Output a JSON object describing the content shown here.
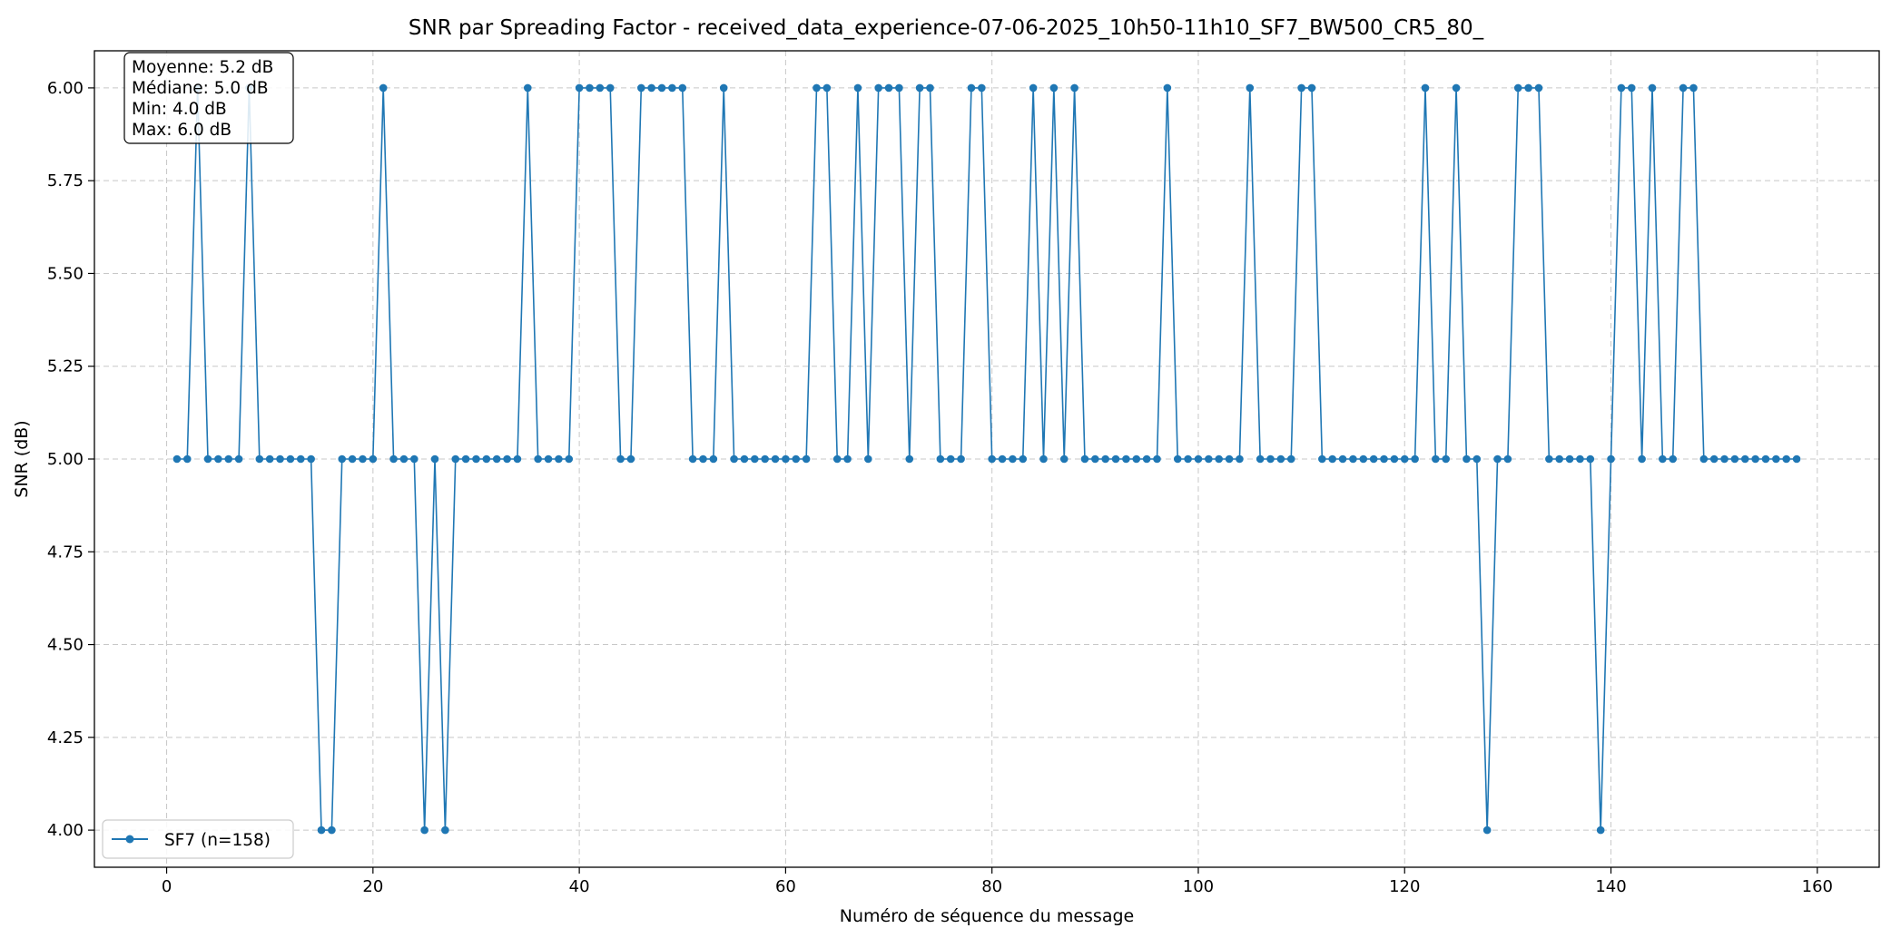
{
  "chart_data": {
    "type": "line",
    "title": "SNR par Spreading Factor - received_data_experience-07-06-2025_10h50-11h10_SF7_BW500_CR5_80_",
    "xlabel": "Numéro de séquence du message",
    "ylabel": "SNR (dB)",
    "xlim": [
      -7,
      166
    ],
    "ylim": [
      3.9,
      6.1
    ],
    "xticks": [
      0,
      20,
      40,
      60,
      80,
      100,
      120,
      140,
      160
    ],
    "xtick_labels": [
      "0",
      "20",
      "40",
      "60",
      "80",
      "100",
      "120",
      "140",
      "160"
    ],
    "yticks": [
      4.0,
      4.25,
      4.5,
      4.75,
      5.0,
      5.25,
      5.5,
      5.75,
      6.0
    ],
    "ytick_labels": [
      "4.00",
      "4.25",
      "4.50",
      "4.75",
      "5.00",
      "5.25",
      "5.50",
      "5.75",
      "6.00"
    ],
    "grid": true,
    "legend_position": "bottom-left",
    "stats_position": "top-left",
    "stats_lines": [
      "Moyenne: 5.2 dB",
      "Médiane: 5.0 dB",
      "Min: 4.0 dB",
      "Max: 6.0 dB"
    ],
    "series": [
      {
        "name": "SF7 (n=158)",
        "color": "#1f77b4",
        "x_start": 1,
        "values": [
          5,
          5,
          6,
          5,
          5,
          5,
          5,
          6,
          5,
          5,
          5,
          5,
          5,
          5,
          4,
          4,
          5,
          5,
          5,
          5,
          6,
          5,
          5,
          5,
          4,
          5,
          4,
          5,
          5,
          5,
          5,
          5,
          5,
          5,
          6,
          5,
          5,
          5,
          5,
          6,
          6,
          6,
          6,
          5,
          5,
          6,
          6,
          6,
          6,
          6,
          5,
          5,
          5,
          6,
          5,
          5,
          5,
          5,
          5,
          5,
          5,
          5,
          6,
          6,
          5,
          5,
          6,
          5,
          6,
          6,
          6,
          5,
          6,
          6,
          5,
          5,
          5,
          6,
          6,
          5,
          5,
          5,
          5,
          6,
          5,
          6,
          5,
          6,
          5,
          5,
          5,
          5,
          5,
          5,
          5,
          5,
          6,
          5,
          5,
          5,
          5,
          5,
          5,
          5,
          6,
          5,
          5,
          5,
          5,
          6,
          6,
          5,
          5,
          5,
          5,
          5,
          5,
          5,
          5,
          5,
          5,
          6,
          5,
          5,
          6,
          5,
          5,
          4,
          5,
          5,
          6,
          6,
          6,
          5,
          5,
          5,
          5,
          5,
          4,
          5,
          6,
          6,
          5,
          6,
          5,
          5,
          6,
          6,
          5,
          5,
          5,
          5,
          5,
          5,
          5,
          5,
          5,
          5
        ]
      }
    ]
  }
}
